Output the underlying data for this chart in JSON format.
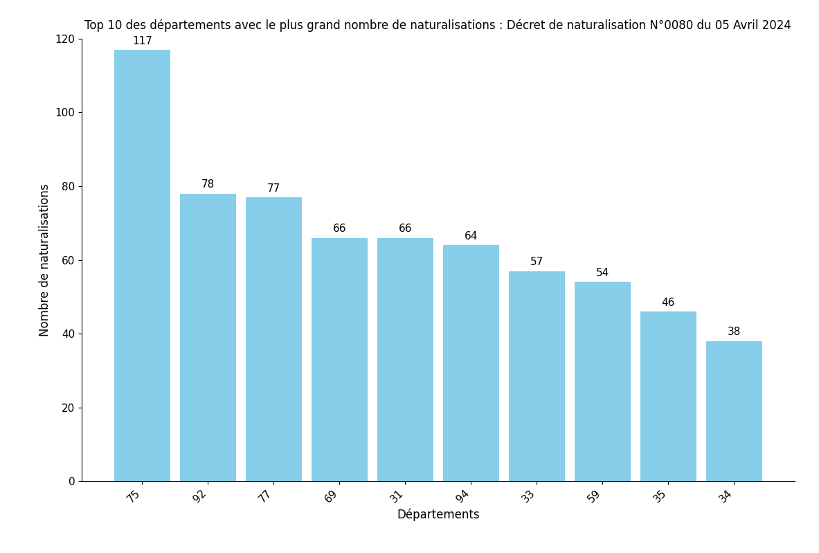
{
  "title": "Top 10 des départements avec le plus grand nombre de naturalisations : Décret de naturalisation N°0080 du 05 Avril 2024",
  "xlabel": "Départements",
  "ylabel": "Nombre de naturalisations",
  "categories": [
    "75",
    "92",
    "77",
    "69",
    "31",
    "94",
    "33",
    "59",
    "35",
    "34"
  ],
  "values": [
    117,
    78,
    77,
    66,
    66,
    64,
    57,
    54,
    46,
    38
  ],
  "bar_color": "#87CEEB",
  "ylim": [
    0,
    120
  ],
  "yticks": [
    0,
    20,
    40,
    60,
    80,
    100,
    120
  ],
  "title_fontsize": 12,
  "label_fontsize": 12,
  "tick_fontsize": 11,
  "value_fontsize": 11,
  "bar_width": 0.85,
  "figsize": [
    11.83,
    7.99
  ],
  "dpi": 100
}
